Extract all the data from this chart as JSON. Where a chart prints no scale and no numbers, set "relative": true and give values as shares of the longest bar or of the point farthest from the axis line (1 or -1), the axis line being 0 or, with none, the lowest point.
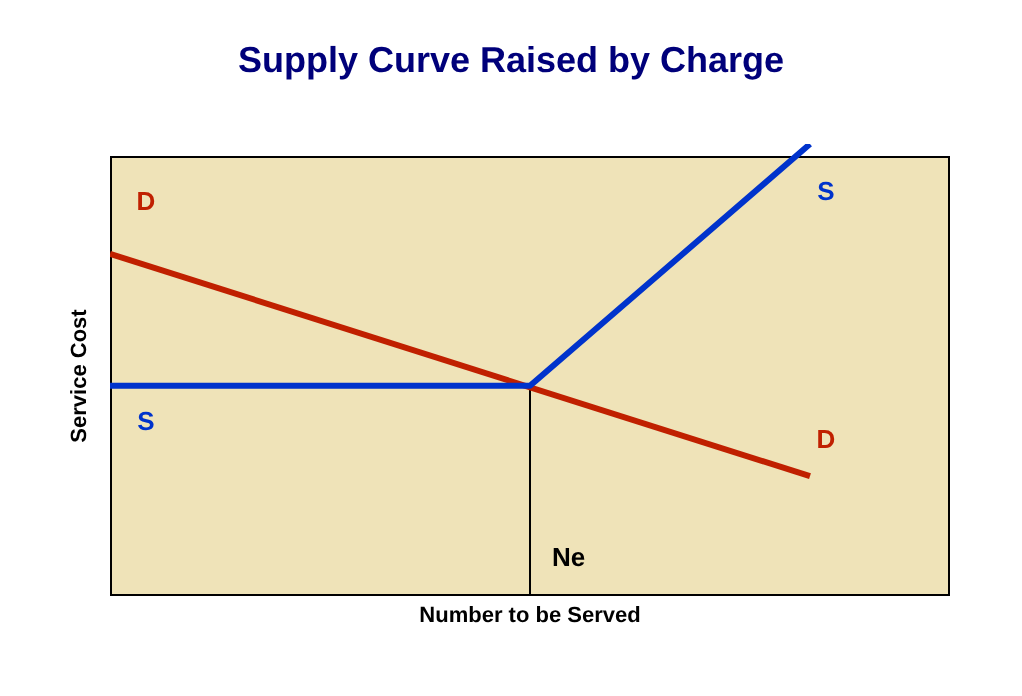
{
  "chart_data": {
    "type": "line",
    "title": "Supply Curve Raised by Charge",
    "xlabel": "Number to be Served",
    "ylabel": "Service Cost",
    "relative": true,
    "tick_labels": false,
    "marker": "none",
    "line_style": "solid",
    "categories": [
      null,
      null,
      null,
      null,
      null,
      null,
      null
    ],
    "series": [
      {
        "name": "D",
        "color": "#c02000",
        "values": [
          0.757,
          null,
          null,
          null,
          null,
          0.265,
          null
        ]
      },
      {
        "name": "S",
        "color": "#0033cc",
        "values": [
          0.465,
          null,
          null,
          0.465,
          null,
          1,
          null
        ]
      }
    ],
    "annotations": [
      "Ne"
    ]
  }
}
